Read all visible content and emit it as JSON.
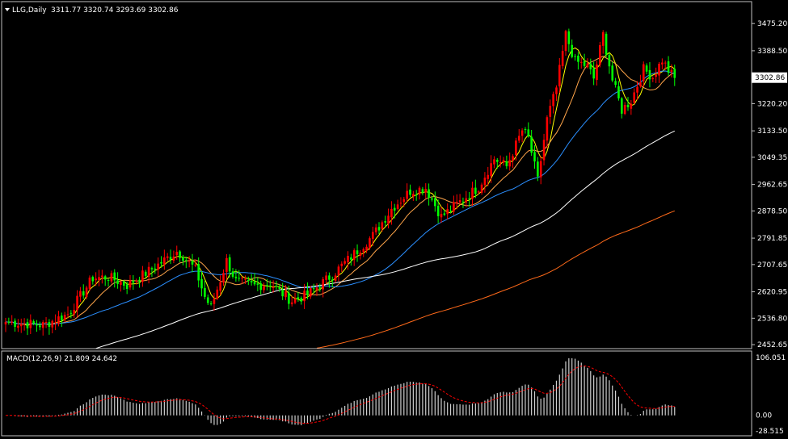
{
  "header": {
    "symbol": "LLG,Daily",
    "ohlc": "3311.77 3320.74 3293.69 3302.86"
  },
  "macd_header": {
    "label": "MACD(12,26,9) 21.809 24.642"
  },
  "colors": {
    "background": "#000000",
    "frame": "#c0c0c0",
    "bull_candle": "#ff0000",
    "bear_candle": "#00ff00",
    "ma_fast": "#ffff00",
    "ma_mid": "#ffa54a",
    "ma_slow": "#2b8fff",
    "ma_long": "#ffffff",
    "ma_longest": "#ff6a1a",
    "macd_hist": "#d0d0d0",
    "macd_signal": "#ff0000"
  },
  "chart_data": [
    {
      "type": "candlestick",
      "title": "",
      "symbol": "LLG,Daily",
      "last_price_label": "3302.86",
      "yticks": [
        "3475.20",
        "3388.50",
        "3220.20",
        "3133.50",
        "3049.35",
        "2962.65",
        "2878.50",
        "2791.85",
        "2707.65",
        "2620.95",
        "2536.80",
        "2452.65"
      ],
      "ylim": [
        2440,
        3545
      ],
      "anchors": [
        {
          "i": 0,
          "c": 2525
        },
        {
          "i": 12,
          "c": 2515
        },
        {
          "i": 20,
          "c": 2550
        },
        {
          "i": 28,
          "c": 2665
        },
        {
          "i": 33,
          "c": 2668
        },
        {
          "i": 39,
          "c": 2642
        },
        {
          "i": 48,
          "c": 2700
        },
        {
          "i": 55,
          "c": 2750
        },
        {
          "i": 57,
          "c": 2735
        },
        {
          "i": 61,
          "c": 2692
        },
        {
          "i": 64,
          "c": 2605
        },
        {
          "i": 66,
          "c": 2570
        },
        {
          "i": 71,
          "c": 2720
        },
        {
          "i": 74,
          "c": 2655
        },
        {
          "i": 80,
          "c": 2640
        },
        {
          "i": 85,
          "c": 2648
        },
        {
          "i": 88,
          "c": 2622
        },
        {
          "i": 92,
          "c": 2592
        },
        {
          "i": 97,
          "c": 2612
        },
        {
          "i": 105,
          "c": 2675
        },
        {
          "i": 112,
          "c": 2742
        },
        {
          "i": 118,
          "c": 2800
        },
        {
          "i": 124,
          "c": 2885
        },
        {
          "i": 130,
          "c": 2942
        },
        {
          "i": 135,
          "c": 2952
        },
        {
          "i": 140,
          "c": 2860
        },
        {
          "i": 145,
          "c": 2900
        },
        {
          "i": 152,
          "c": 2955
        },
        {
          "i": 157,
          "c": 3045
        },
        {
          "i": 161,
          "c": 3020
        },
        {
          "i": 166,
          "c": 3135
        },
        {
          "i": 168,
          "c": 3110
        },
        {
          "i": 171,
          "c": 2975
        },
        {
          "i": 174,
          "c": 3170
        },
        {
          "i": 177,
          "c": 3270
        },
        {
          "i": 180,
          "c": 3440
        },
        {
          "i": 183,
          "c": 3355
        },
        {
          "i": 187,
          "c": 3340
        },
        {
          "i": 189,
          "c": 3300
        },
        {
          "i": 192,
          "c": 3440
        },
        {
          "i": 195,
          "c": 3295
        },
        {
          "i": 198,
          "c": 3200
        },
        {
          "i": 201,
          "c": 3230
        },
        {
          "i": 205,
          "c": 3330
        },
        {
          "i": 208,
          "c": 3305
        },
        {
          "i": 211,
          "c": 3360
        },
        {
          "i": 213,
          "c": 3325
        },
        {
          "i": 215,
          "c": 3302
        }
      ],
      "moving_averages": [
        {
          "period": 5,
          "color": "#ffff00"
        },
        {
          "period": 13,
          "color": "#ffa54a"
        },
        {
          "period": 34,
          "color": "#2b8fff"
        },
        {
          "period": 90,
          "color": "#ffffff"
        },
        {
          "period": 200,
          "color": "#ff6a1a",
          "prehistory_start": 2150
        }
      ]
    },
    {
      "type": "macd",
      "title": "MACD(12,26,9) 21.809 24.642",
      "params": [
        12,
        26,
        9
      ],
      "macd_value": 21.809,
      "signal_value": 24.642,
      "yticks": [
        "106.051",
        "0.00",
        "-28.515"
      ],
      "ylim": [
        -28.515,
        106.051
      ]
    }
  ]
}
